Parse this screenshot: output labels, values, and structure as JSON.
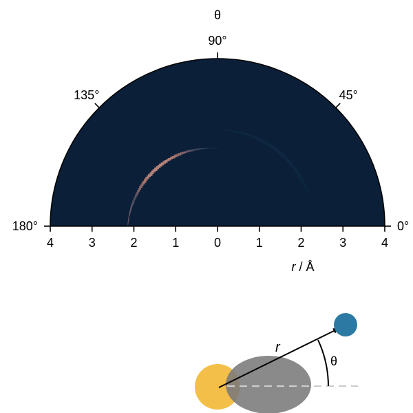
{
  "chart_data": {
    "type": "heatmap",
    "coordinate_system": "polar-half-disk",
    "title": "θ",
    "xlabel_italic": "r",
    "xlabel_rest": " / Å",
    "r_range": [
      0,
      4
    ],
    "theta_range_deg": [
      0,
      180
    ],
    "r_tick_labels": [
      "4",
      "3",
      "2",
      "1",
      "0",
      "1",
      "2",
      "3",
      "4"
    ],
    "theta_ticks": [
      {
        "deg": 0,
        "label": "0°"
      },
      {
        "deg": 45,
        "label": "45°"
      },
      {
        "deg": 90,
        "label": "90°"
      },
      {
        "deg": 135,
        "label": "135°"
      },
      {
        "deg": 180,
        "label": "180°"
      }
    ],
    "density_ridges": [
      {
        "name": "main",
        "theta_deg": [
          90,
          180
        ],
        "r_center_at_90deg": 1.85,
        "r_center_at_180deg": 2.15,
        "peak_theta_deg": 135,
        "peak_intensity": 1.0
      },
      {
        "name": "faint",
        "theta_deg": [
          20,
          90
        ],
        "r_center": 2.3,
        "peak_intensity": 0.15
      }
    ],
    "colormap": [
      "#081a30",
      "#1e3a5f",
      "#4f6b8f",
      "#c06a55",
      "#e48a6a",
      "#f7e3d6"
    ],
    "grid": false
  },
  "schematic": {
    "r_label": "r",
    "theta_label": "θ",
    "colors": {
      "large_atom": "#f3bf48",
      "small_atom": "#2c7aa3",
      "density_lobe": "#7a7a7a",
      "reference_line": "#cccccc",
      "arrow": "#000000"
    }
  }
}
